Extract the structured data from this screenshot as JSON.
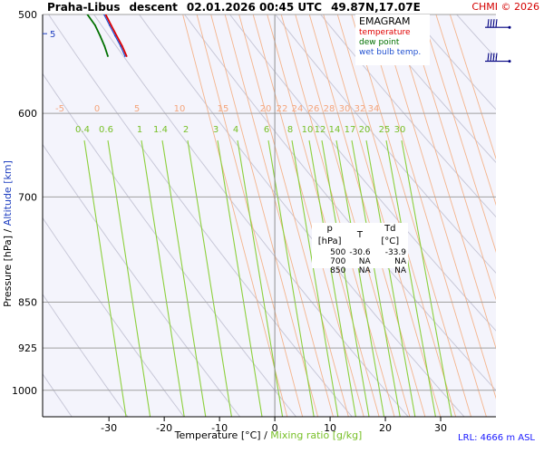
{
  "header": {
    "station": "Praha-Libus",
    "mode": "descent",
    "datetime": "02.01.2026 00:45 UTC",
    "position": "49.87N,17.07E",
    "copyright": "CHMI © 2026"
  },
  "legend": {
    "title": "EMAGRAM",
    "items": [
      {
        "label": "temperature",
        "color": "#e00000"
      },
      {
        "label": "dew point",
        "color": "#007000"
      },
      {
        "label": "wet bulb temp.",
        "color": "#2050d0"
      }
    ]
  },
  "table": {
    "headers": [
      "p [hPa]",
      "T",
      "Td [°C]"
    ],
    "rows": [
      [
        "500",
        "-30.6",
        "-33.9"
      ],
      [
        "700",
        "NA",
        "NA"
      ],
      [
        "850",
        "NA",
        "NA"
      ]
    ]
  },
  "lrl": "LRL: 4666 m ASL",
  "chart_data": {
    "type": "line",
    "title": "",
    "xlabel": "Temperature [°C]",
    "xlabel_separator": "/",
    "xlabel_secondary": "Mixing ratio [g/kg]",
    "ylabel": "Pressure [hPa]",
    "ylabel_separator": "/",
    "ylabel_secondary": "Altitude [km]",
    "y_scale": "log",
    "xlim": [
      -42,
      40
    ],
    "ylim": [
      1050,
      500
    ],
    "x_ticks": [
      -30,
      -20,
      -10,
      0,
      10,
      20,
      30
    ],
    "y_ticks": [
      500,
      600,
      700,
      850,
      925,
      1000
    ],
    "altitude_ticks": [
      {
        "label": "5",
        "p": 518
      }
    ],
    "isotherm_labels": [
      "-5",
      "0",
      "5",
      "10",
      "15",
      "20",
      "22",
      "24",
      "26",
      "28",
      "30",
      "32",
      "34"
    ],
    "mixing_ratio_labels": [
      "0.4",
      "0.6",
      "1",
      "1.4",
      "2",
      "3",
      "4",
      "6",
      "8",
      "10",
      "12",
      "14",
      "17",
      "20",
      "25",
      "30"
    ],
    "series": [
      {
        "name": "temperature",
        "color": "#e00000",
        "p": [
          500,
          510,
          520,
          530,
          540
        ],
        "t": [
          -30.6,
          -29.6,
          -28.6,
          -27.6,
          -26.8
        ]
      },
      {
        "name": "dew point",
        "color": "#007000",
        "p": [
          500,
          510,
          520,
          530,
          540
        ],
        "t": [
          -33.9,
          -32.5,
          -31.6,
          -30.8,
          -30.2
        ]
      },
      {
        "name": "wet bulb temp.",
        "color": "#2050d0",
        "p": [
          500,
          510,
          520,
          530,
          540
        ],
        "t": [
          -30.9,
          -29.9,
          -28.9,
          -27.9,
          -27.1
        ]
      }
    ],
    "wind_barbs": [
      {
        "p": 512
      },
      {
        "p": 545
      }
    ]
  }
}
